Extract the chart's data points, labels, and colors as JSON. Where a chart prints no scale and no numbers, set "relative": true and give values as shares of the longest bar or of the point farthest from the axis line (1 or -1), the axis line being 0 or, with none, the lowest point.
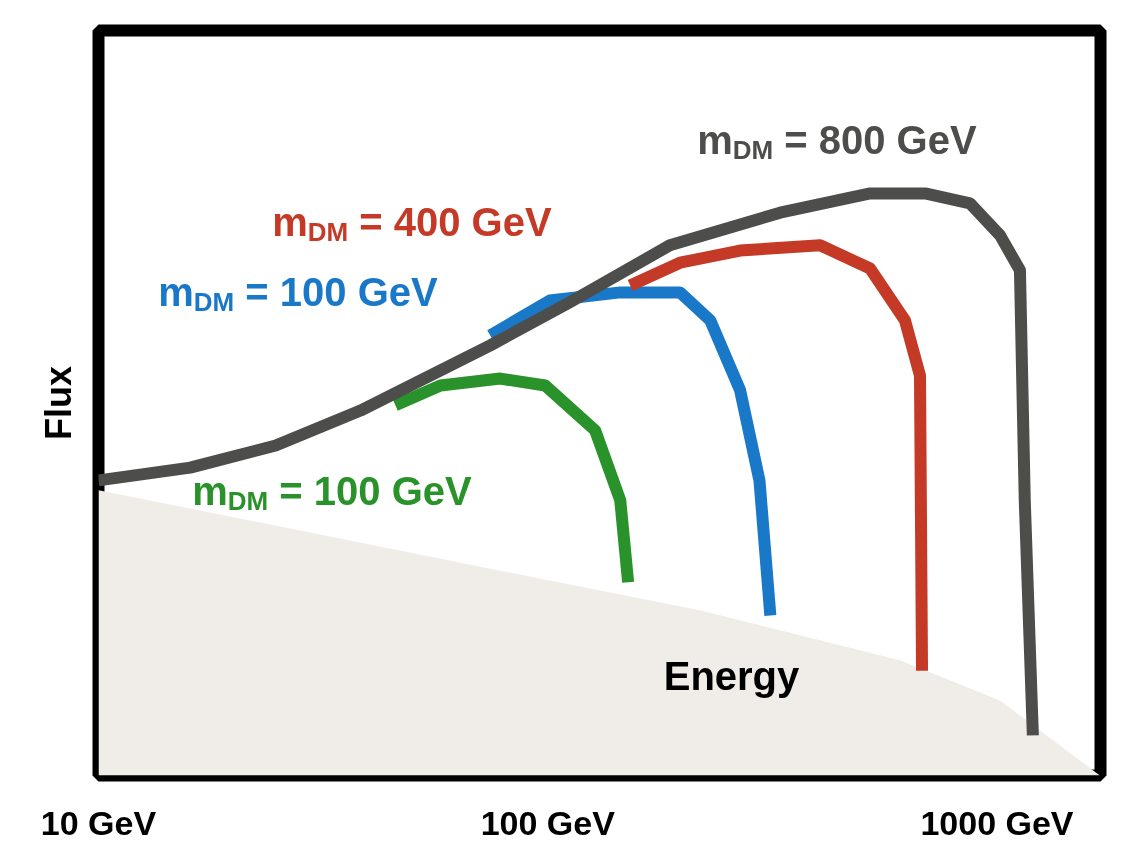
{
  "chart_data": {
    "type": "line",
    "relative": true,
    "log": "x",
    "xlabel": "Energy",
    "ylabel": "Flux",
    "xlim": [
      10,
      1700
    ],
    "xticks": [
      {
        "value": 10,
        "label": "10 GeV"
      },
      {
        "value": 100,
        "label": "100 GeV"
      },
      {
        "value": 1000,
        "label": "1000 GeV"
      }
    ],
    "grid": false,
    "marker": "none",
    "line_style": "solid",
    "series": [
      {
        "type": "area",
        "color": "#f0ede8",
        "x": [
          10,
          28.1,
          78.4,
          218,
          608,
          1016,
          1694
        ],
        "values": [
          0.49,
          0.421,
          0.352,
          0.284,
          0.198,
          0.129,
          0
        ]
      },
      {
        "name": "m$_{DM}$ = 800 GeV",
        "color": "#4d4d4b",
        "x": [
          10,
          16,
          24.8,
          38.3,
          74.5,
          112,
          187,
          329,
          522,
          692,
          871,
          1016,
          1125,
          1153,
          1202
        ],
        "values": [
          0.507,
          0.529,
          0.567,
          0.627,
          0.739,
          0.813,
          0.911,
          0.967,
          1.0,
          1.0,
          0.983,
          0.928,
          0.868,
          0.473,
          0.069
        ]
      },
      {
        "name": "m$_{DM}$ = 400 GeV",
        "color": "#c43a26",
        "x": [
          152.6,
          197,
          268,
          404,
          522,
          624,
          674,
          681
        ],
        "values": [
          0.842,
          0.881,
          0.902,
          0.911,
          0.871,
          0.782,
          0.687,
          0.18
        ]
      },
      {
        "name": "m$_{DM}$ = 100 GeV",
        "color": "#1a78c8",
        "x": [
          74.5,
          101,
          145,
          197,
          230,
          268,
          296,
          313
        ],
        "values": [
          0.756,
          0.816,
          0.83,
          0.83,
          0.782,
          0.662,
          0.507,
          0.275
        ]
      },
      {
        "name": "m$_{DM}$ = 100 GeV",
        "color": "#2a922a",
        "x": [
          45.8,
          57.7,
          78.4,
          98.7,
          127.5,
          145,
          151
        ],
        "values": [
          0.636,
          0.67,
          0.682,
          0.67,
          0.593,
          0.473,
          0.332
        ]
      }
    ]
  }
}
